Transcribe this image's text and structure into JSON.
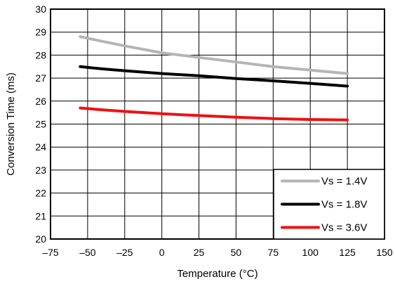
{
  "chart_data": {
    "type": "line",
    "xlabel": "Temperature (°C)",
    "ylabel": "Conversion Time (ms)",
    "xlim": [
      -75,
      150
    ],
    "ylim": [
      20,
      30
    ],
    "x_ticks": [
      "–75",
      "–50",
      "–25",
      "0",
      "25",
      "50",
      "75",
      "100",
      "125",
      "150"
    ],
    "y_ticks": [
      "20",
      "21",
      "22",
      "23",
      "24",
      "25",
      "26",
      "27",
      "28",
      "29",
      "30"
    ],
    "grid": true,
    "legend_position": "bottom-right",
    "series": [
      {
        "name": "Vs = 1.4V",
        "color": "#b5b5b5",
        "x": [
          -55,
          -40,
          -25,
          0,
          25,
          50,
          75,
          100,
          125
        ],
        "y": [
          28.8,
          28.6,
          28.4,
          28.1,
          27.9,
          27.7,
          27.5,
          27.35,
          27.2
        ]
      },
      {
        "name": "Vs = 1.8V",
        "color": "#000000",
        "x": [
          -55,
          -40,
          -25,
          0,
          25,
          50,
          75,
          100,
          125
        ],
        "y": [
          27.5,
          27.4,
          27.32,
          27.2,
          27.1,
          26.98,
          26.88,
          26.77,
          26.65
        ]
      },
      {
        "name": "Vs = 3.6V",
        "color": "#ee1111",
        "x": [
          -55,
          -40,
          -25,
          0,
          25,
          50,
          75,
          100,
          125
        ],
        "y": [
          25.7,
          25.62,
          25.55,
          25.45,
          25.37,
          25.3,
          25.24,
          25.2,
          25.18
        ]
      }
    ]
  }
}
